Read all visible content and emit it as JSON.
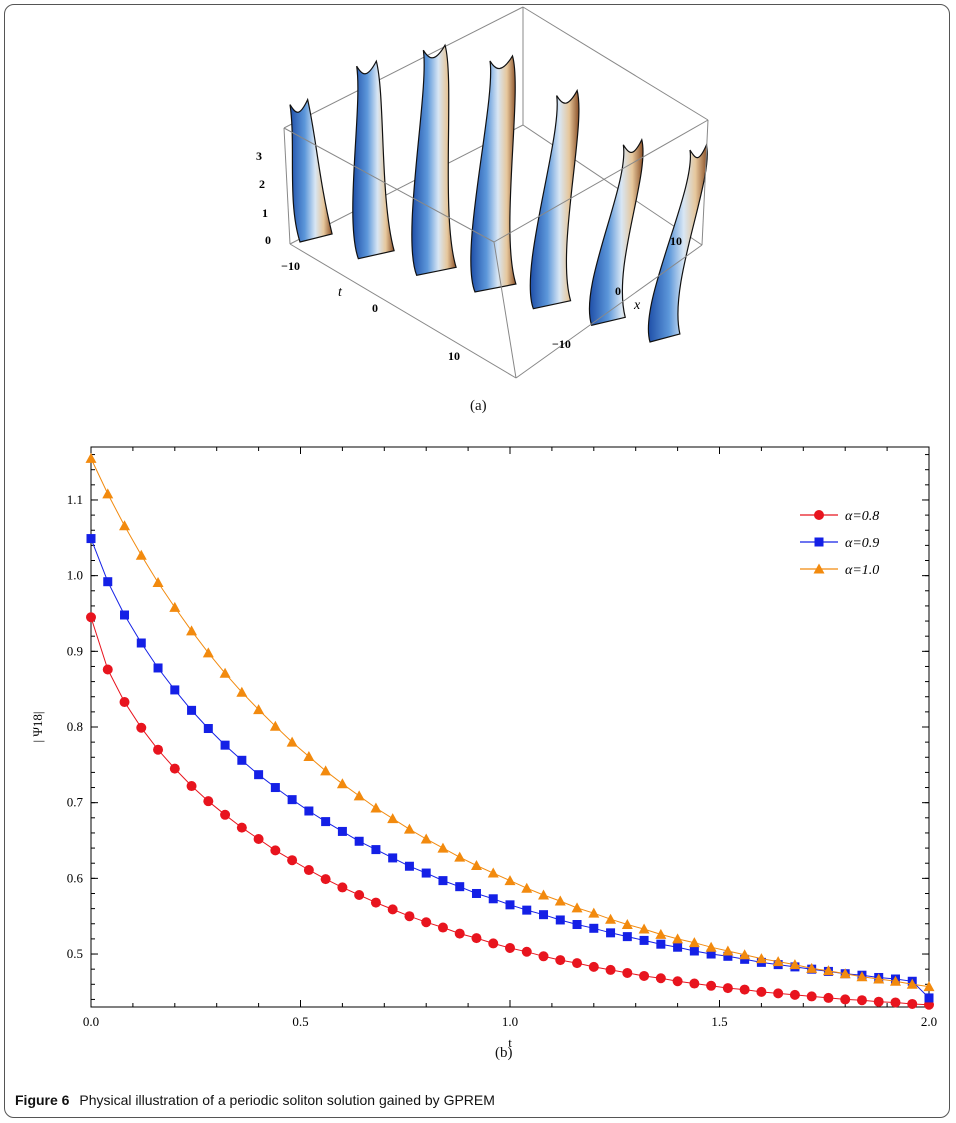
{
  "figure": {
    "caption_label": "Figure 6",
    "caption_text": "Physical illustration of a periodic soliton solution gained by GPREM",
    "panel_a_label": "(a)",
    "panel_b_label": "(b)"
  },
  "chart_data": [
    {
      "type": "surface3d",
      "axes": {
        "t_label": "t",
        "x_label": "x",
        "z_ticks": [
          "3",
          "2",
          "1",
          "0"
        ],
        "t_ticks": [
          "−10",
          "0",
          "10"
        ],
        "x_ticks": [
          "10",
          "0",
          "−10"
        ],
        "z_range": [
          0,
          3.4
        ],
        "t_range": [
          -15,
          15
        ],
        "x_range": [
          -15,
          15
        ]
      },
      "ridges": 7,
      "colormap": [
        "#1f4fa8",
        "#4f8fd6",
        "#cfe2f5",
        "#f2e3c8",
        "#c8864a",
        "#5a2f18"
      ]
    },
    {
      "type": "line",
      "xlabel": "t",
      "ylabel": "| Ψ18|",
      "xlim": [
        0,
        2
      ],
      "ylim": [
        0.43,
        1.17
      ],
      "x_ticks": [
        0.0,
        0.5,
        1.0,
        1.5,
        2.0
      ],
      "x_tick_labels": [
        "0.0",
        "0.5",
        "1.0",
        "1.5",
        "2.0"
      ],
      "y_ticks": [
        0.5,
        0.6,
        0.7,
        0.8,
        0.9,
        1.0,
        1.1
      ],
      "y_tick_labels": [
        "0.5",
        "0.6",
        "0.7",
        "0.8",
        "0.9",
        "1.0",
        "1.1"
      ],
      "legend_position": "top-right",
      "series": [
        {
          "name": "α=0.8",
          "color": "#e8141e",
          "marker": "circle",
          "x": [
            0.0,
            0.04,
            0.08,
            0.12,
            0.16,
            0.2,
            0.24,
            0.28,
            0.32,
            0.36,
            0.4,
            0.44,
            0.48,
            0.52,
            0.56,
            0.6,
            0.64,
            0.68,
            0.72,
            0.76,
            0.8,
            0.84,
            0.88,
            0.92,
            0.96,
            1.0,
            1.04,
            1.08,
            1.12,
            1.16,
            1.2,
            1.24,
            1.28,
            1.32,
            1.36,
            1.4,
            1.44,
            1.48,
            1.52,
            1.56,
            1.6,
            1.64,
            1.68,
            1.72,
            1.76,
            1.8,
            1.84,
            1.88,
            1.92,
            1.96,
            2.0
          ],
          "y": [
            0.945,
            0.876,
            0.833,
            0.799,
            0.77,
            0.745,
            0.722,
            0.702,
            0.684,
            0.667,
            0.652,
            0.637,
            0.624,
            0.611,
            0.599,
            0.588,
            0.578,
            0.568,
            0.559,
            0.55,
            0.542,
            0.535,
            0.527,
            0.521,
            0.514,
            0.508,
            0.503,
            0.497,
            0.492,
            0.488,
            0.483,
            0.479,
            0.475,
            0.471,
            0.468,
            0.464,
            0.461,
            0.458,
            0.455,
            0.453,
            0.45,
            0.448,
            0.446,
            0.444,
            0.442,
            0.44,
            0.439,
            0.437,
            0.436,
            0.434,
            0.433
          ]
        },
        {
          "name": "α=0.9",
          "color": "#1420e6",
          "marker": "square",
          "x": [
            0.0,
            0.04,
            0.08,
            0.12,
            0.16,
            0.2,
            0.24,
            0.28,
            0.32,
            0.36,
            0.4,
            0.44,
            0.48,
            0.52,
            0.56,
            0.6,
            0.64,
            0.68,
            0.72,
            0.76,
            0.8,
            0.84,
            0.88,
            0.92,
            0.96,
            1.0,
            1.04,
            1.08,
            1.12,
            1.16,
            1.2,
            1.24,
            1.28,
            1.32,
            1.36,
            1.4,
            1.44,
            1.48,
            1.52,
            1.56,
            1.6,
            1.64,
            1.68,
            1.72,
            1.76,
            1.8,
            1.84,
            1.88,
            1.92,
            1.96,
            2.0
          ],
          "y": [
            1.049,
            0.992,
            0.948,
            0.911,
            0.878,
            0.849,
            0.822,
            0.798,
            0.776,
            0.756,
            0.737,
            0.72,
            0.704,
            0.689,
            0.675,
            0.662,
            0.649,
            0.638,
            0.627,
            0.616,
            0.607,
            0.597,
            0.589,
            0.58,
            0.573,
            0.565,
            0.558,
            0.552,
            0.545,
            0.539,
            0.534,
            0.528,
            0.523,
            0.518,
            0.513,
            0.509,
            0.504,
            0.5,
            0.497,
            0.493,
            0.489,
            0.486,
            0.483,
            0.48,
            0.477,
            0.474,
            0.472,
            0.469,
            0.467,
            0.464,
            0.442
          ]
        },
        {
          "name": "α=1.0",
          "color": "#f28a0e",
          "marker": "triangle",
          "x": [
            0.0,
            0.04,
            0.08,
            0.12,
            0.16,
            0.2,
            0.24,
            0.28,
            0.32,
            0.36,
            0.4,
            0.44,
            0.48,
            0.52,
            0.56,
            0.6,
            0.64,
            0.68,
            0.72,
            0.76,
            0.8,
            0.84,
            0.88,
            0.92,
            0.96,
            1.0,
            1.04,
            1.08,
            1.12,
            1.16,
            1.2,
            1.24,
            1.28,
            1.32,
            1.36,
            1.4,
            1.44,
            1.48,
            1.52,
            1.56,
            1.6,
            1.64,
            1.68,
            1.72,
            1.76,
            1.8,
            1.84,
            1.88,
            1.92,
            1.96,
            2.0
          ],
          "y": [
            1.155,
            1.108,
            1.066,
            1.027,
            0.991,
            0.958,
            0.927,
            0.898,
            0.871,
            0.846,
            0.823,
            0.801,
            0.78,
            0.761,
            0.742,
            0.725,
            0.709,
            0.693,
            0.679,
            0.665,
            0.652,
            0.64,
            0.628,
            0.617,
            0.607,
            0.597,
            0.587,
            0.578,
            0.57,
            0.561,
            0.554,
            0.546,
            0.539,
            0.533,
            0.526,
            0.52,
            0.515,
            0.509,
            0.504,
            0.499,
            0.494,
            0.49,
            0.486,
            0.481,
            0.478,
            0.474,
            0.47,
            0.467,
            0.464,
            0.46,
            0.457
          ]
        }
      ]
    }
  ]
}
